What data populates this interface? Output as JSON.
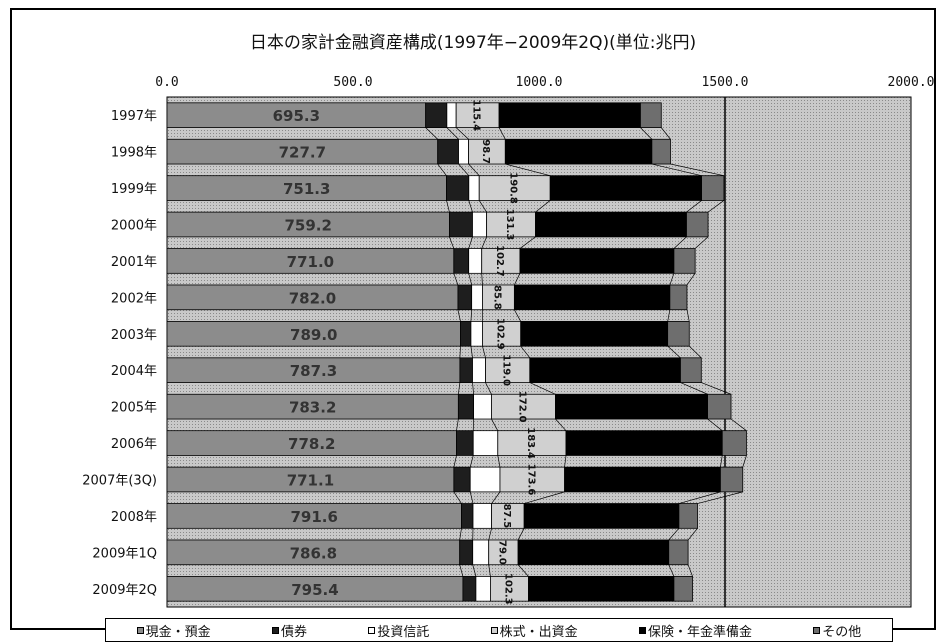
{
  "chart_data": {
    "type": "bar",
    "orientation": "horizontal",
    "stacked": true,
    "title": "日本の家計金融資産構成(1997年−2009年2Q)(単位:兆円)",
    "xlim": [
      0,
      2000
    ],
    "xticks": [
      0,
      500,
      1000,
      1500,
      2000
    ],
    "xtick_labels": [
      "0.0",
      "500.0",
      "1000.0",
      "1500.0",
      "2000.0"
    ],
    "categories": [
      "1997年",
      "1998年",
      "1999年",
      "2000年",
      "2001年",
      "2002年",
      "2003年",
      "2004年",
      "2005年",
      "2006年",
      "2007年(3Q)",
      "2008年",
      "2009年1Q",
      "2009年2Q"
    ],
    "series": [
      {
        "name": "現金・預金",
        "color": "#8c8c8c",
        "values": [
          695.3,
          727.7,
          751.3,
          759.2,
          771.0,
          782.0,
          789.0,
          787.3,
          783.2,
          778.2,
          771.1,
          791.6,
          786.8,
          795.4
        ]
      },
      {
        "name": "債券",
        "color": "#1e1e1e",
        "values": [
          57,
          56,
          60,
          62,
          40,
          37,
          28,
          34,
          41,
          45,
          44,
          31,
          35,
          35
        ]
      },
      {
        "name": "投資信託",
        "color": "#ffffff",
        "values": [
          25,
          27,
          28,
          38,
          35,
          29,
          31,
          35,
          48,
          66,
          80,
          50,
          43,
          39
        ]
      },
      {
        "name": "株式・出資金",
        "color": "#d0d0d0",
        "values": [
          115.4,
          98.7,
          190.8,
          131.3,
          102.7,
          85.8,
          102.9,
          119.0,
          172.0,
          183.4,
          173.6,
          87.5,
          79.0,
          102.3
        ]
      },
      {
        "name": "保険・年金準備金",
        "color": "#000000",
        "values": [
          380,
          394,
          407,
          406,
          414,
          418,
          395,
          405,
          409,
          420,
          419,
          416,
          405,
          391
        ]
      },
      {
        "name": "その他",
        "color": "#6e6e6e",
        "values": [
          56,
          50,
          60,
          58,
          57,
          46,
          58,
          56,
          63,
          65,
          60,
          50,
          52,
          50
        ]
      }
    ],
    "value_labels_series_0": [
      "695.3",
      "727.7",
      "751.3",
      "759.2",
      "771.0",
      "782.0",
      "789.0",
      "787.3",
      "783.2",
      "778.2",
      "771.1",
      "791.6",
      "786.8",
      "795.4"
    ],
    "value_labels_series_3": [
      "115.4",
      "98.7",
      "190.8",
      "131.3",
      "102.7",
      "85.8",
      "102.9",
      "119.0",
      "172.0",
      "183.4",
      "173.6",
      "87.5",
      "79.0",
      "102.3"
    ],
    "reference_line": 1500,
    "grid": false,
    "legend_position": "bottom"
  }
}
